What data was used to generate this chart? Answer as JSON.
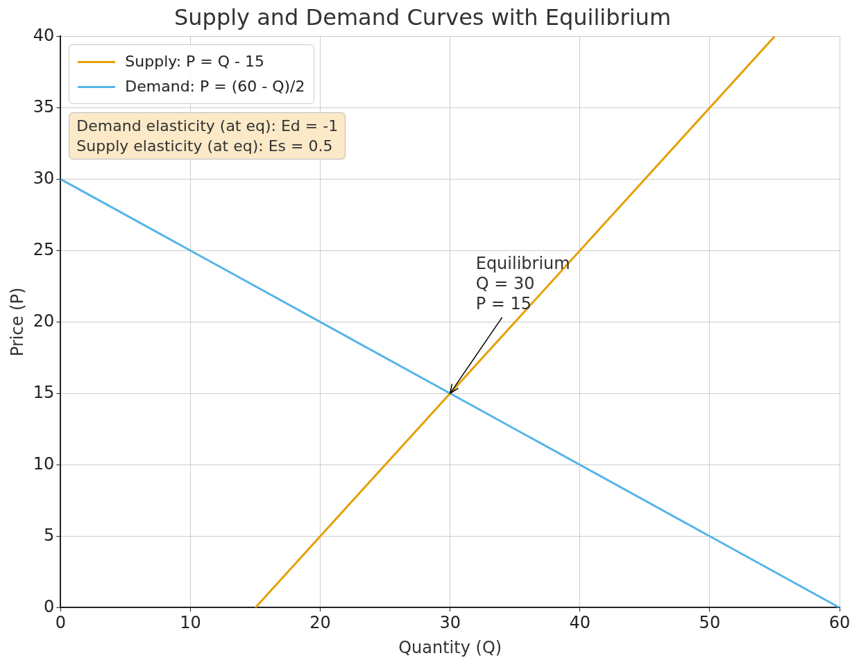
{
  "chart_data": {
    "type": "line",
    "title": "Supply and Demand Curves with Equilibrium",
    "xlabel": "Quantity (Q)",
    "ylabel": "Price (P)",
    "series": [
      {
        "name": "Supply: P = Q - 15",
        "color": "#e69f00",
        "x": [
          15,
          55
        ],
        "values": [
          0,
          40
        ]
      },
      {
        "name": "Demand: P = (60 - Q)/2",
        "color": "#56b4e9",
        "x": [
          0,
          60
        ],
        "values": [
          30,
          0
        ]
      }
    ],
    "xlim": [
      0,
      60
    ],
    "xticks": [
      0,
      10,
      20,
      30,
      40,
      50,
      60
    ],
    "ylim": [
      0,
      40
    ],
    "yticks": [
      0,
      5,
      10,
      15,
      20,
      25,
      30,
      35,
      40
    ],
    "grid": true,
    "legend": "top left",
    "marker": "none",
    "line_style": "solid",
    "annotations": [
      {
        "text": "Equilibrium\nQ = 30\nP = 15",
        "x": 30,
        "y": 15
      },
      "Demand elasticity (at eq): Ed = -1\nSupply elasticity (at eq): Es = 0.5"
    ]
  }
}
